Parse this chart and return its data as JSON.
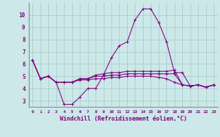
{
  "xlabel": "Windchill (Refroidissement éolien,°C)",
  "background_color": "#cce8e8",
  "line_color": "#800080",
  "grid_color": "#aacccc",
  "x_ticks": [
    0,
    1,
    2,
    3,
    4,
    5,
    6,
    7,
    8,
    9,
    10,
    11,
    12,
    13,
    14,
    15,
    16,
    17,
    18,
    19,
    20,
    21,
    22,
    23
  ],
  "y_ticks": [
    3,
    4,
    5,
    6,
    7,
    8,
    9,
    10
  ],
  "ylim": [
    2.5,
    11.0
  ],
  "xlim": [
    -0.5,
    23.5
  ],
  "series": [
    [
      6.3,
      4.8,
      5.0,
      4.5,
      2.7,
      2.7,
      3.3,
      4.0,
      4.0,
      5.1,
      6.5,
      7.5,
      7.8,
      9.6,
      10.5,
      10.5,
      9.4,
      7.8,
      5.3,
      5.3,
      4.2,
      4.3,
      4.1,
      4.3
    ],
    [
      6.3,
      4.8,
      5.0,
      4.5,
      4.5,
      4.5,
      4.8,
      4.8,
      5.1,
      5.2,
      5.3,
      5.3,
      5.4,
      5.4,
      5.4,
      5.4,
      5.4,
      5.4,
      5.5,
      4.3,
      4.2,
      4.3,
      4.1,
      4.3
    ],
    [
      6.3,
      4.8,
      5.0,
      4.5,
      4.5,
      4.5,
      4.8,
      4.8,
      5.0,
      5.0,
      5.1,
      5.1,
      5.2,
      5.2,
      5.2,
      5.2,
      5.2,
      5.2,
      5.2,
      4.3,
      4.2,
      4.3,
      4.1,
      4.3
    ],
    [
      6.3,
      4.8,
      5.0,
      4.5,
      4.5,
      4.5,
      4.7,
      4.7,
      4.8,
      4.8,
      4.9,
      4.9,
      5.0,
      5.0,
      5.0,
      5.0,
      4.9,
      4.8,
      4.5,
      4.3,
      4.2,
      4.3,
      4.1,
      4.3
    ]
  ],
  "marker": "+",
  "markersize": 3,
  "linewidth": 0.8
}
